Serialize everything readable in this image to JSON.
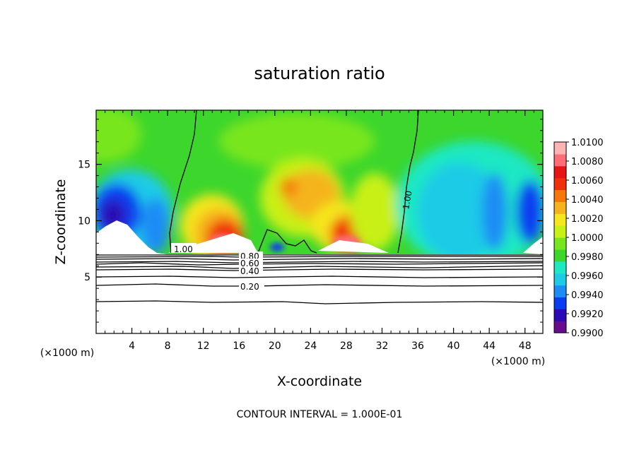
{
  "chart_data": {
    "type": "heatmap",
    "title": "saturation ratio",
    "xlabel": "X-coordinate",
    "ylabel": "Z-coordinate",
    "x_unit": "(×1000 m)",
    "xlim": [
      0,
      50
    ],
    "ylim": [
      0,
      19.8
    ],
    "xticks": [
      4,
      8,
      12,
      16,
      20,
      24,
      28,
      32,
      36,
      40,
      44,
      48
    ],
    "yticks": [
      5,
      10,
      15
    ],
    "colorbar": {
      "labels": [
        "1.0100",
        "1.0080",
        "1.0060",
        "1.0040",
        "1.0020",
        "1.0000",
        "0.9980",
        "0.9960",
        "0.9940",
        "0.9920",
        "0.9900"
      ],
      "min": 0.99,
      "max": 1.01,
      "colors": [
        "#6a0a8c",
        "#2a0ab4",
        "#0a3cf0",
        "#1e8cf5",
        "#1ecbe6",
        "#1ee8c3",
        "#3cd62d",
        "#78e61e",
        "#c8f014",
        "#f5e61e",
        "#f5b41e",
        "#f5780a",
        "#f0300a",
        "#e61414",
        "#ff6e78",
        "#ffb4b4"
      ]
    },
    "contour_labels": [
      "1.00",
      "0.80",
      "0.60",
      "0.40",
      "0.20",
      "1.00"
    ],
    "contour_interval": "CONTOUR INTERVAL = 1.000E-01",
    "grid": false
  }
}
